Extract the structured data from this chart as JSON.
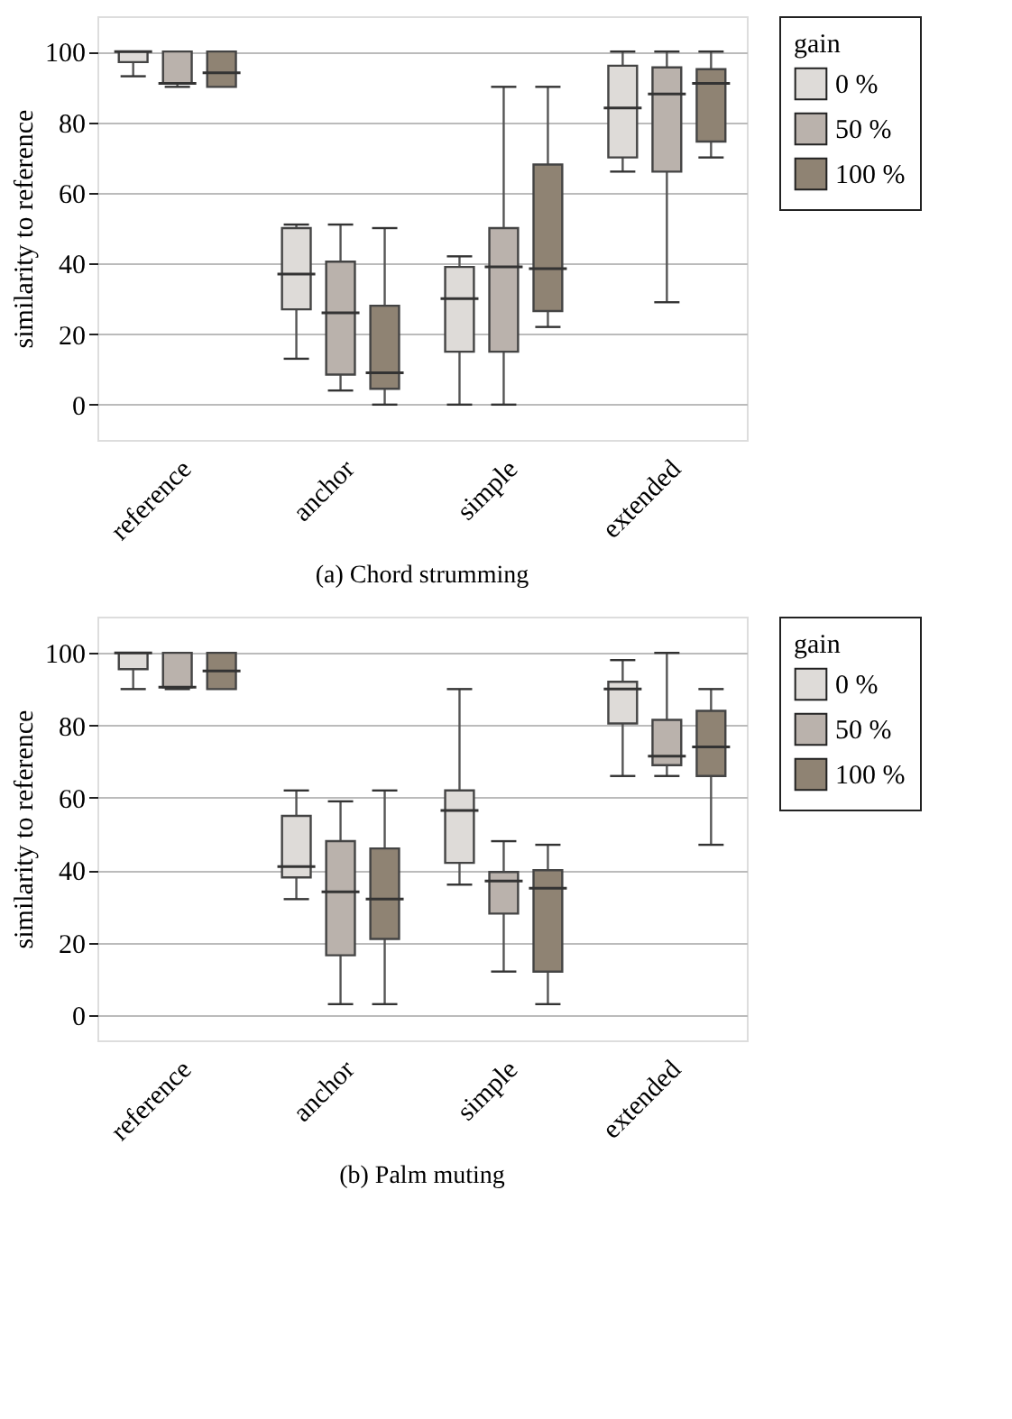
{
  "chart_data": [
    {
      "type": "box",
      "ylabel": "similarity to reference",
      "legend_title": "gain",
      "legend": "right",
      "grid": "y",
      "annotations": [
        "(a)  Chord strumming"
      ],
      "categories": [
        "reference",
        "anchor",
        "simple",
        "extended"
      ],
      "ylim": [
        -10,
        110
      ],
      "yticks": [
        0,
        20,
        40,
        60,
        80,
        100
      ],
      "series": [
        {
          "name": "0 %",
          "color": "#dedbd8",
          "boxes": [
            {
              "low": 93,
              "q1": 97,
              "median": 100,
              "q3": 100,
              "high": 100
            },
            {
              "low": 13,
              "q1": 27,
              "median": 37,
              "q3": 50,
              "high": 51
            },
            {
              "low": 0,
              "q1": 15,
              "median": 30,
              "q3": 39,
              "high": 42
            },
            {
              "low": 66,
              "q1": 70,
              "median": 84,
              "q3": 96,
              "high": 100
            }
          ]
        },
        {
          "name": "50 %",
          "color": "#bab2ac",
          "boxes": [
            {
              "low": 90,
              "q1": 91,
              "median": 91,
              "q3": 100,
              "high": 100
            },
            {
              "low": 4,
              "q1": 8.5,
              "median": 26,
              "q3": 40.5,
              "high": 51
            },
            {
              "low": 0,
              "q1": 15,
              "median": 39,
              "q3": 50,
              "high": 90
            },
            {
              "low": 29,
              "q1": 66,
              "median": 88,
              "q3": 95.5,
              "high": 100
            }
          ]
        },
        {
          "name": "100 %",
          "color": "#8f8373",
          "boxes": [
            {
              "low": 90,
              "q1": 90,
              "median": 94,
              "q3": 100,
              "high": 100
            },
            {
              "low": 0,
              "q1": 4.5,
              "median": 9,
              "q3": 28,
              "high": 50
            },
            {
              "low": 22,
              "q1": 26.5,
              "median": 38.5,
              "q3": 68,
              "high": 90
            },
            {
              "low": 70,
              "q1": 74.5,
              "median": 91,
              "q3": 95,
              "high": 100
            }
          ]
        }
      ]
    },
    {
      "type": "box",
      "ylabel": "similarity to reference",
      "legend_title": "gain",
      "legend": "right",
      "grid": "y",
      "annotations": [
        "(b)  Palm muting"
      ],
      "categories": [
        "reference",
        "anchor",
        "simple",
        "extended"
      ],
      "ylim": [
        -7,
        110
      ],
      "yticks": [
        0,
        20,
        40,
        60,
        80,
        100
      ],
      "series": [
        {
          "name": "0 %",
          "color": "#dedbd8",
          "boxes": [
            {
              "low": 90,
              "q1": 95.5,
              "median": 100,
              "q3": 100,
              "high": 100
            },
            {
              "low": 32,
              "q1": 38,
              "median": 41,
              "q3": 55,
              "high": 62
            },
            {
              "low": 36,
              "q1": 42,
              "median": 56.5,
              "q3": 62,
              "high": 90
            },
            {
              "low": 66,
              "q1": 80.5,
              "median": 90,
              "q3": 92,
              "high": 98
            }
          ]
        },
        {
          "name": "50 %",
          "color": "#bab2ac",
          "boxes": [
            {
              "low": 90,
              "q1": 90.5,
              "median": 90.5,
              "q3": 100,
              "high": 100
            },
            {
              "low": 3,
              "q1": 16.5,
              "median": 34,
              "q3": 48,
              "high": 59
            },
            {
              "low": 12,
              "q1": 28,
              "median": 37,
              "q3": 39.5,
              "high": 48
            },
            {
              "low": 66,
              "q1": 69,
              "median": 71.5,
              "q3": 81.5,
              "high": 100
            }
          ]
        },
        {
          "name": "100 %",
          "color": "#8f8373",
          "boxes": [
            {
              "low": 90,
              "q1": 90,
              "median": 95,
              "q3": 100,
              "high": 100
            },
            {
              "low": 3,
              "q1": 21,
              "median": 32,
              "q3": 46,
              "high": 62
            },
            {
              "low": 3,
              "q1": 12,
              "median": 35,
              "q3": 40,
              "high": 47
            },
            {
              "low": 47,
              "q1": 66,
              "median": 74,
              "q3": 84,
              "high": 90
            }
          ]
        }
      ]
    }
  ]
}
